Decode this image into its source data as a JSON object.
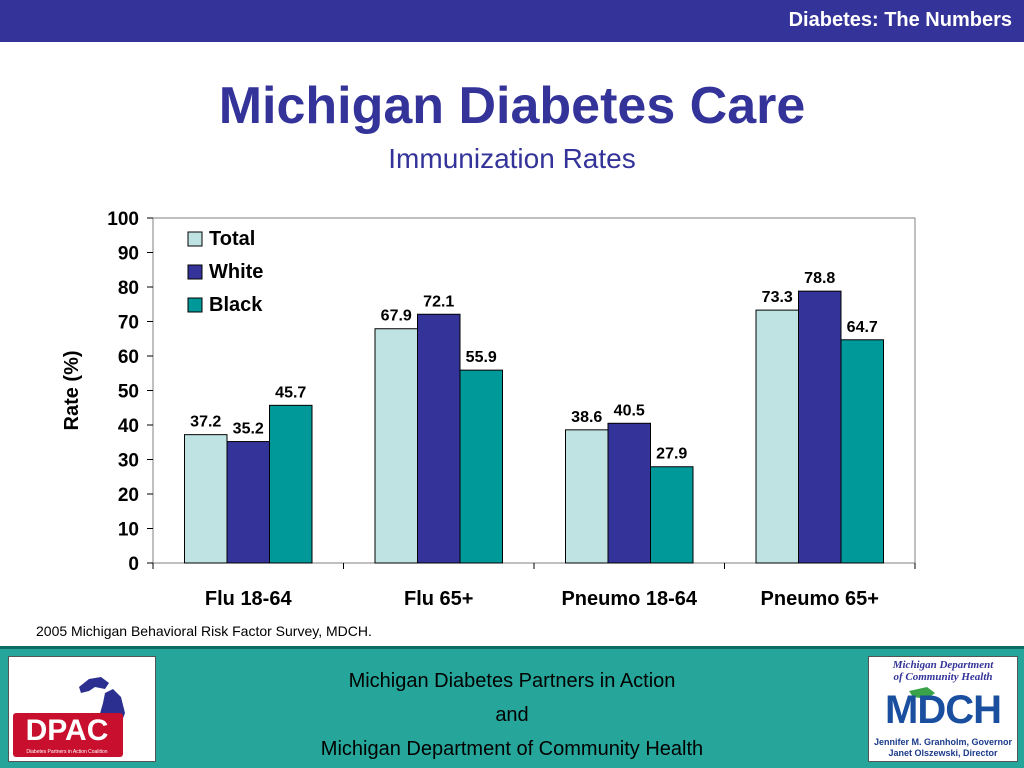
{
  "header": {
    "text": "Diabetes: The Numbers"
  },
  "title": "Michigan Diabetes Care",
  "subtitle": "Immunization Rates",
  "source_note": "2005 Michigan Behavioral Risk Factor Survey, MDCH.",
  "footer": {
    "line1": "Michigan Diabetes Partners in Action",
    "line2": "and",
    "line3": "Michigan Department of Community Health"
  },
  "logos": {
    "left": {
      "text": "DPAC",
      "subtext": "Diabetes Partners in Action Coalition"
    },
    "right": {
      "line1": "Michigan Department",
      "line2": "of Community Health",
      "letters": "MDCH",
      "governor": "Jennifer M. Granholm, Governor",
      "director": "Janet Olszewski, Director"
    }
  },
  "colors": {
    "header_bg": "#333399",
    "title": "#333399",
    "total": "#bfe3e3",
    "white": "#333399",
    "black": "#009999",
    "footer_bg": "#26a69a"
  },
  "chart_data": {
    "type": "bar",
    "categories": [
      "Flu 18-64",
      "Flu 65+",
      "Pneumo 18-64",
      "Pneumo 65+"
    ],
    "series": [
      {
        "name": "Total",
        "values": [
          37.2,
          67.9,
          38.6,
          73.3
        ]
      },
      {
        "name": "White",
        "values": [
          35.2,
          72.1,
          40.5,
          78.8
        ]
      },
      {
        "name": "Black",
        "values": [
          45.7,
          55.9,
          27.9,
          64.7
        ]
      }
    ],
    "ylabel": "Rate (%)",
    "ylim": [
      0,
      100
    ],
    "yticks": [
      0,
      10,
      20,
      30,
      40,
      50,
      60,
      70,
      80,
      90,
      100
    ],
    "grid": false,
    "legend": "top-left",
    "data_labels": true
  }
}
